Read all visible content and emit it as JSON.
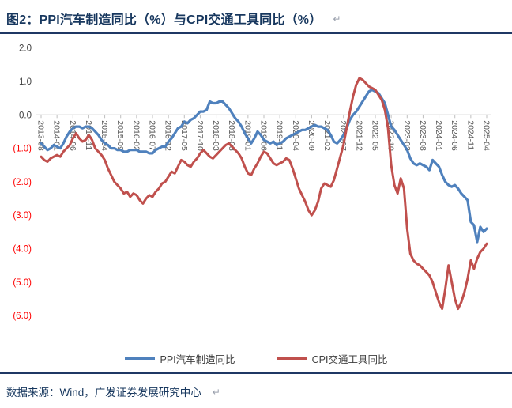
{
  "figure": {
    "title": "图2：PPI汽车制造同比（%）与CPI交通工具同比（%）",
    "title_return_mark": "↵",
    "source": "数据来源：Wind，广发证券发展研究中心",
    "source_return_mark": "↵"
  },
  "colors": {
    "title_navy": "#17375E",
    "rule": "#1F3864",
    "axis_line": "#BFBFBF",
    "x_tick_label": "#595959",
    "y_tick_label_positive": "#404040",
    "y_tick_label_negative": "#FF0000",
    "legend_text": "#404040"
  },
  "chart_data": {
    "type": "line",
    "title": "PPI汽车制造同比（%）与CPI交通工具同比（%）",
    "xlabel": "",
    "ylabel": "",
    "ylim": [
      -6.0,
      2.0
    ],
    "grid": "zero-axis-only",
    "legend_position": "bottom",
    "y_ticks": [
      {
        "label": "2.0",
        "value": 2.0
      },
      {
        "label": "1.0",
        "value": 1.0
      },
      {
        "label": "0.0",
        "value": 0.0
      },
      {
        "label": "(1.0)",
        "value": -1.0
      },
      {
        "label": "(2.0)",
        "value": -2.0
      },
      {
        "label": "(3.0)",
        "value": -3.0
      },
      {
        "label": "(4.0)",
        "value": -4.0
      },
      {
        "label": "(5.0)",
        "value": -5.0
      },
      {
        "label": "(6.0)",
        "value": -6.0
      }
    ],
    "x_tick_every": 5,
    "x_tick_labels": [
      "2013-08",
      "2014-01",
      "2014-06",
      "2014-11",
      "2015-04",
      "2015-09",
      "2016-02",
      "2016-07",
      "2016-12",
      "2017-05",
      "2017-10",
      "2018-03",
      "2018-08",
      "2019-01",
      "2019-06",
      "2019-11",
      "2020-04",
      "2020-09",
      "2021-02",
      "2021-07",
      "2021-12",
      "2022-05",
      "2022-10",
      "2023-03",
      "2023-08",
      "2024-01",
      "2024-06",
      "2024-11",
      "2025-04"
    ],
    "x": [
      "2013-08",
      "2013-09",
      "2013-10",
      "2013-11",
      "2013-12",
      "2014-01",
      "2014-02",
      "2014-03",
      "2014-04",
      "2014-05",
      "2014-06",
      "2014-07",
      "2014-08",
      "2014-09",
      "2014-10",
      "2014-11",
      "2014-12",
      "2015-01",
      "2015-02",
      "2015-03",
      "2015-04",
      "2015-05",
      "2015-06",
      "2015-07",
      "2015-08",
      "2015-09",
      "2015-10",
      "2015-11",
      "2015-12",
      "2016-01",
      "2016-02",
      "2016-03",
      "2016-04",
      "2016-05",
      "2016-06",
      "2016-07",
      "2016-08",
      "2016-09",
      "2016-10",
      "2016-11",
      "2016-12",
      "2017-01",
      "2017-02",
      "2017-03",
      "2017-04",
      "2017-05",
      "2017-06",
      "2017-07",
      "2017-08",
      "2017-09",
      "2017-10",
      "2017-11",
      "2017-12",
      "2018-01",
      "2018-02",
      "2018-03",
      "2018-04",
      "2018-05",
      "2018-06",
      "2018-07",
      "2018-08",
      "2018-09",
      "2018-10",
      "2018-11",
      "2018-12",
      "2019-01",
      "2019-02",
      "2019-03",
      "2019-04",
      "2019-05",
      "2019-06",
      "2019-07",
      "2019-08",
      "2019-09",
      "2019-10",
      "2019-11",
      "2019-12",
      "2020-01",
      "2020-02",
      "2020-03",
      "2020-04",
      "2020-05",
      "2020-06",
      "2020-07",
      "2020-08",
      "2020-09",
      "2020-10",
      "2020-11",
      "2020-12",
      "2021-01",
      "2021-02",
      "2021-03",
      "2021-04",
      "2021-05",
      "2021-06",
      "2021-07",
      "2021-08",
      "2021-09",
      "2021-10",
      "2021-11",
      "2021-12",
      "2022-01",
      "2022-02",
      "2022-03",
      "2022-04",
      "2022-05",
      "2022-06",
      "2022-07",
      "2022-08",
      "2022-09",
      "2022-10",
      "2022-11",
      "2022-12",
      "2023-01",
      "2023-02",
      "2023-03",
      "2023-04",
      "2023-05",
      "2023-06",
      "2023-07",
      "2023-08",
      "2023-09",
      "2023-10",
      "2023-11",
      "2023-12",
      "2024-01",
      "2024-02",
      "2024-03",
      "2024-04",
      "2024-05",
      "2024-06",
      "2024-07",
      "2024-08",
      "2024-09",
      "2024-10",
      "2024-11",
      "2024-12",
      "2025-01",
      "2025-02",
      "2025-03",
      "2025-04"
    ],
    "series": [
      {
        "name": "PPI汽车制造同比",
        "color": "#4F81BD",
        "stroke_width": 3.2,
        "values": [
          -0.85,
          -0.95,
          -1.05,
          -1.0,
          -0.9,
          -0.95,
          -1.0,
          -0.85,
          -0.65,
          -0.5,
          -0.4,
          -0.35,
          -0.35,
          -0.4,
          -0.35,
          -0.35,
          -0.4,
          -0.5,
          -0.6,
          -0.75,
          -0.85,
          -0.9,
          -1.0,
          -1.0,
          -1.05,
          -1.05,
          -1.1,
          -1.1,
          -1.05,
          -1.05,
          -1.05,
          -1.1,
          -1.1,
          -1.1,
          -1.15,
          -1.15,
          -1.05,
          -1.0,
          -0.95,
          -0.95,
          -0.8,
          -0.7,
          -0.55,
          -0.4,
          -0.35,
          -0.2,
          -0.25,
          -0.15,
          -0.1,
          0.0,
          0.1,
          0.1,
          0.15,
          0.4,
          0.35,
          0.35,
          0.4,
          0.4,
          0.3,
          0.2,
          0.05,
          -0.1,
          -0.2,
          -0.35,
          -0.55,
          -0.7,
          -0.85,
          -0.7,
          -0.5,
          -0.6,
          -0.75,
          -0.8,
          -0.85,
          -0.8,
          -0.9,
          -0.85,
          -0.8,
          -0.7,
          -0.65,
          -0.6,
          -0.55,
          -0.5,
          -0.45,
          -0.45,
          -0.4,
          -0.35,
          -0.3,
          -0.35,
          -0.35,
          -0.4,
          -0.45,
          -0.6,
          -0.8,
          -0.85,
          -0.75,
          -0.6,
          -0.4,
          -0.15,
          0.0,
          0.1,
          0.25,
          0.4,
          0.55,
          0.7,
          0.75,
          0.7,
          0.65,
          0.5,
          0.35,
          0.0,
          -0.35,
          -0.45,
          -0.6,
          -0.75,
          -0.9,
          -1.05,
          -1.3,
          -1.45,
          -1.5,
          -1.45,
          -1.5,
          -1.55,
          -1.65,
          -1.35,
          -1.45,
          -1.55,
          -1.8,
          -2.0,
          -2.1,
          -2.15,
          -2.1,
          -2.2,
          -2.35,
          -2.45,
          -2.55,
          -3.2,
          -3.3,
          -3.8,
          -3.35,
          -3.5,
          -3.4
        ]
      },
      {
        "name": "CPI交通工具同比",
        "color": "#C0504D",
        "stroke_width": 3.0,
        "values": [
          -1.25,
          -1.35,
          -1.4,
          -1.3,
          -1.25,
          -1.2,
          -1.25,
          -1.1,
          -1.0,
          -0.9,
          -0.7,
          -0.55,
          -0.7,
          -0.8,
          -0.75,
          -0.6,
          -0.75,
          -1.0,
          -1.1,
          -1.2,
          -1.35,
          -1.6,
          -1.8,
          -2.0,
          -2.1,
          -2.2,
          -2.35,
          -2.3,
          -2.45,
          -2.35,
          -2.4,
          -2.55,
          -2.65,
          -2.5,
          -2.4,
          -2.45,
          -2.3,
          -2.2,
          -2.05,
          -2.0,
          -1.85,
          -1.7,
          -1.75,
          -1.55,
          -1.35,
          -1.4,
          -1.5,
          -1.55,
          -1.4,
          -1.3,
          -1.15,
          -1.05,
          -1.15,
          -1.25,
          -1.3,
          -1.2,
          -1.1,
          -1.0,
          -0.9,
          -0.85,
          -0.95,
          -1.05,
          -1.15,
          -1.3,
          -1.55,
          -1.75,
          -1.8,
          -1.6,
          -1.45,
          -1.25,
          -1.1,
          -1.15,
          -1.3,
          -1.45,
          -1.5,
          -1.45,
          -1.4,
          -1.3,
          -1.35,
          -1.6,
          -1.9,
          -2.2,
          -2.4,
          -2.6,
          -2.85,
          -3.0,
          -2.85,
          -2.6,
          -2.2,
          -2.05,
          -2.1,
          -2.15,
          -1.95,
          -1.6,
          -1.25,
          -0.9,
          -0.4,
          0.1,
          0.55,
          0.9,
          1.1,
          1.05,
          0.95,
          0.85,
          0.8,
          0.75,
          0.6,
          0.45,
          0.15,
          -0.4,
          -1.5,
          -2.1,
          -2.35,
          -1.9,
          -2.2,
          -3.4,
          -4.15,
          -4.35,
          -4.45,
          -4.5,
          -4.6,
          -4.7,
          -4.8,
          -5.0,
          -5.3,
          -5.6,
          -5.8,
          -5.2,
          -4.5,
          -5.0,
          -5.5,
          -5.8,
          -5.6,
          -5.3,
          -4.9,
          -4.35,
          -4.6,
          -4.3,
          -4.1,
          -4.0,
          -3.85
        ]
      }
    ]
  }
}
